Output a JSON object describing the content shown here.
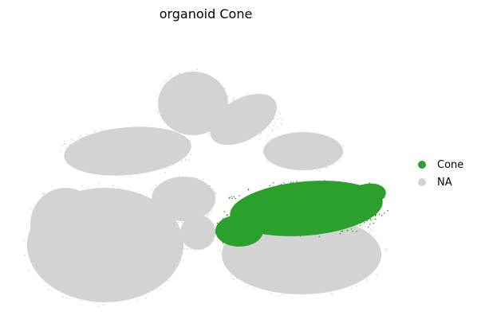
{
  "chart_data": {
    "type": "scatter",
    "title": "organoid Cone",
    "xlabel": "",
    "ylabel": "",
    "grid": false,
    "legend_placement": "right",
    "series": [
      {
        "name": "Cone",
        "color": "#2ca02c"
      },
      {
        "name": "NA",
        "color": "#d3d3d3"
      }
    ]
  }
}
